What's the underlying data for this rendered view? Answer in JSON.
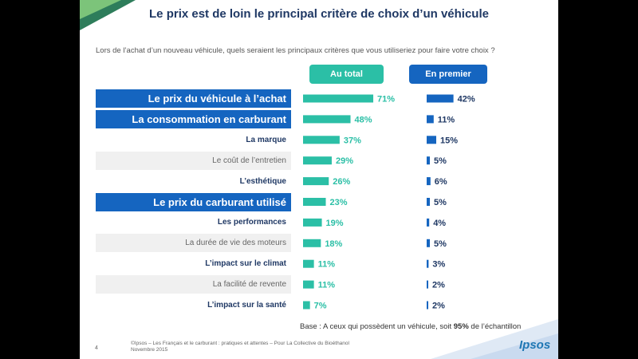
{
  "title": "Le prix est de loin le principal critère de choix d’un véhicule",
  "question": "Lors de l’achat d’un nouveau véhicule, quels seraient les principaux critères que vous utiliseriez pour faire votre choix ?",
  "headers": {
    "total": "Au total",
    "first": "En premier"
  },
  "base_note": {
    "pre": "Base : A ceux qui possèdent un véhicule, soit ",
    "pct": "95%",
    "post": " de l’échantillon"
  },
  "footer": {
    "page": "4",
    "line1": "©Ipsos – Les Français et le carburant : pratiques et attentes – Pour La Collective du Bioéthanol",
    "line2": "Novembre 2015"
  },
  "logo": "Ipsos",
  "colors": {
    "total": "#2bbfa6",
    "first": "#1565c0",
    "highlight": "#1565c0"
  },
  "chart_data": {
    "type": "bar",
    "orientation": "horizontal",
    "title": "Le prix est de loin le principal critère de choix d’un véhicule",
    "categories": [
      "Le prix du véhicule à l’achat",
      "La consommation en carburant",
      "La marque",
      "Le coût de l’entretien",
      "L’esthétique",
      "Le prix du carburant utilisé",
      "Les performances",
      "La durée de vie des moteurs",
      "L’impact sur le climat",
      "La facilité de revente",
      "L’impact sur la santé"
    ],
    "styles": [
      "hl",
      "hl",
      "bold",
      "plain",
      "bold",
      "hl",
      "bold",
      "plain",
      "bold",
      "plain",
      "bold"
    ],
    "value_labels_total": [
      "71%",
      "48%",
      "37%",
      "29%",
      "26%",
      "23%",
      "19%",
      "18%",
      "11%",
      "11%",
      "7%"
    ],
    "value_labels_first": [
      "42%",
      "11%",
      "15%",
      "5%",
      "6%",
      "5%",
      "4%",
      "5%",
      "3%",
      "2%",
      "2%"
    ],
    "series": [
      {
        "name": "Au total",
        "values": [
          71,
          48,
          37,
          29,
          26,
          23,
          19,
          18,
          11,
          11,
          7
        ]
      },
      {
        "name": "En premier",
        "values": [
          42,
          11,
          15,
          5,
          6,
          5,
          4,
          5,
          3,
          2,
          2
        ]
      }
    ],
    "unit": "%"
  }
}
